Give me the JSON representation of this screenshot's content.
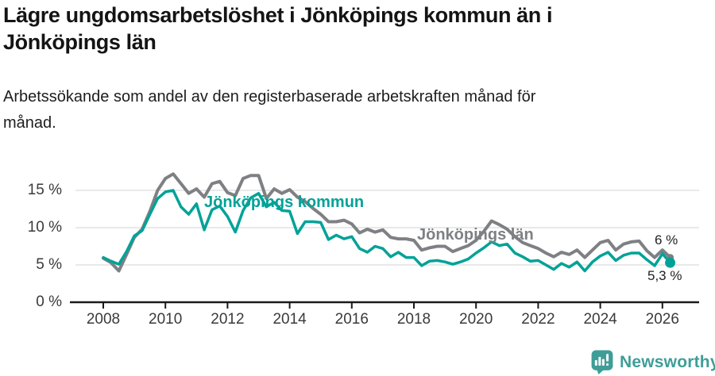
{
  "chart_data": {
    "type": "line",
    "title": "Lägre ungdomsarbetslöshet i Jönköpings kommun än i Jönköpings län",
    "subtitle": "Arbetssökande som andel av den registerbaserade arbetskraften månad för månad.",
    "xlabel": "",
    "ylabel": "",
    "grid": "horizontal",
    "legend_position": "inline-labels",
    "xlim": [
      2006.9,
      2027.2
    ],
    "ylim": [
      0,
      18.6
    ],
    "x_ticks": [
      {
        "value": 2008,
        "label": "2008"
      },
      {
        "value": 2010,
        "label": "2010"
      },
      {
        "value": 2012,
        "label": "2012"
      },
      {
        "value": 2014,
        "label": "2014"
      },
      {
        "value": 2016,
        "label": "2016"
      },
      {
        "value": 2018,
        "label": "2018"
      },
      {
        "value": 2020,
        "label": "2020"
      },
      {
        "value": 2022,
        "label": "2022"
      },
      {
        "value": 2024,
        "label": "2024"
      },
      {
        "value": 2026,
        "label": "2026"
      }
    ],
    "y_ticks": [
      {
        "value": 0,
        "label": "0 %"
      },
      {
        "value": 5,
        "label": "5 %"
      },
      {
        "value": 10,
        "label": "10 %"
      },
      {
        "value": 15,
        "label": "15 %"
      }
    ],
    "x": [
      2008,
      2008.25,
      2008.5,
      2008.75,
      2009,
      2009.25,
      2009.5,
      2009.75,
      2010,
      2010.25,
      2010.5,
      2010.75,
      2011,
      2011.25,
      2011.5,
      2011.75,
      2012,
      2012.25,
      2012.5,
      2012.75,
      2013,
      2013.25,
      2013.5,
      2013.75,
      2014,
      2014.25,
      2014.5,
      2014.75,
      2015,
      2015.25,
      2015.5,
      2015.75,
      2016,
      2016.25,
      2016.5,
      2016.75,
      2017,
      2017.25,
      2017.5,
      2017.75,
      2018,
      2018.25,
      2018.5,
      2018.75,
      2019,
      2019.25,
      2019.5,
      2019.75,
      2020,
      2020.25,
      2020.5,
      2020.75,
      2021,
      2021.25,
      2021.5,
      2021.75,
      2022,
      2022.25,
      2022.5,
      2022.75,
      2023,
      2023.25,
      2023.5,
      2023.75,
      2024,
      2024.25,
      2024.5,
      2024.75,
      2025,
      2025.25,
      2025.5,
      2025.75,
      2026,
      2026.25
    ],
    "series": [
      {
        "name": "Jönköpings län",
        "color": "#7e8083",
        "end_value_label": "6 %",
        "values": [
          5.9,
          5.3,
          4.2,
          6.4,
          8.7,
          9.8,
          12.2,
          15.0,
          16.6,
          17.2,
          15.9,
          14.6,
          15.2,
          14.1,
          15.9,
          16.2,
          14.7,
          14.3,
          16.6,
          17.0,
          17.0,
          13.9,
          15.2,
          14.6,
          15.1,
          14.1,
          13.5,
          12.6,
          11.8,
          10.8,
          10.8,
          11.0,
          10.5,
          9.3,
          9.8,
          9.4,
          9.7,
          8.7,
          8.5,
          8.5,
          8.3,
          7.0,
          7.3,
          7.5,
          7.5,
          6.8,
          7.2,
          7.6,
          8.3,
          9.5,
          10.9,
          10.4,
          9.8,
          8.8,
          8.0,
          7.6,
          7.2,
          6.6,
          6.1,
          6.7,
          6.4,
          7.0,
          6.0,
          7.0,
          8.0,
          8.3,
          7.0,
          7.8,
          8.1,
          8.2,
          6.9,
          6.0,
          7.0,
          6.0
        ]
      },
      {
        "name": "Jönköpings kommun",
        "color": "#00a298",
        "end_value_label": "5,3 %",
        "values": [
          6.0,
          5.5,
          5.1,
          6.8,
          8.9,
          9.6,
          11.8,
          13.9,
          14.8,
          15.0,
          12.8,
          11.8,
          13.2,
          9.7,
          12.4,
          12.9,
          11.5,
          9.4,
          12.3,
          14.0,
          14.6,
          12.8,
          13.4,
          12.3,
          12.2,
          9.2,
          10.8,
          10.8,
          10.7,
          8.4,
          9.0,
          8.5,
          8.8,
          7.2,
          6.7,
          7.5,
          7.2,
          6.1,
          6.7,
          6.0,
          6.0,
          4.9,
          5.5,
          5.6,
          5.4,
          5.1,
          5.4,
          5.8,
          6.6,
          7.3,
          8.1,
          7.6,
          7.8,
          6.6,
          6.1,
          5.5,
          5.6,
          5.0,
          4.4,
          5.2,
          4.7,
          5.4,
          4.2,
          5.4,
          6.2,
          6.7,
          5.6,
          6.3,
          6.6,
          6.6,
          5.7,
          4.9,
          6.5,
          5.3
        ]
      }
    ],
    "end_labels": {
      "lan": "6 %",
      "kommun": "5,3 %"
    }
  },
  "footer": {
    "brand": "Newsworthy"
  },
  "colors": {
    "kommun_line": "#00a298",
    "lan_line": "#7e8083",
    "axis": "#1a1a1a",
    "gridline": "#dcdcdd",
    "brand_teal": "#3f9d98"
  }
}
